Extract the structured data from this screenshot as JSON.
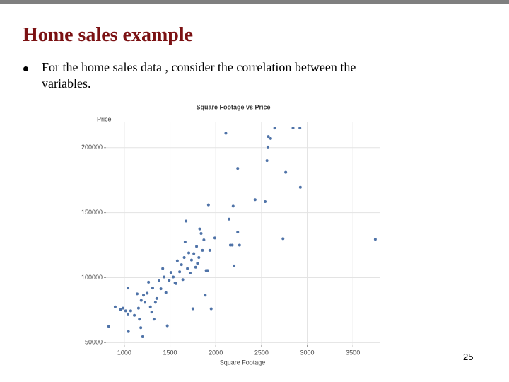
{
  "title": "Home sales example",
  "bullets": [
    "For the home sales data , consider the correlation between the variables."
  ],
  "page_number": "25",
  "chart_data": {
    "type": "scatter",
    "title": "Square Footage vs Price",
    "x_label": "Square Footage",
    "y_label": "Price",
    "color": "#4f73a8",
    "grid": true,
    "xlim": [
      800,
      3800
    ],
    "xticks": [
      1000,
      1500,
      2000,
      2500,
      3000,
      3500
    ],
    "ylim": [
      48000,
      220000
    ],
    "yticks": [
      50000,
      100000,
      150000,
      200000
    ],
    "x": [
      830,
      900,
      960,
      985,
      1015,
      1040,
      1045,
      1040,
      1070,
      1110,
      1140,
      1155,
      1165,
      1180,
      1200,
      1185,
      1210,
      1225,
      1250,
      1265,
      1285,
      1300,
      1310,
      1325,
      1340,
      1355,
      1380,
      1400,
      1420,
      1435,
      1455,
      1470,
      1490,
      1510,
      1535,
      1555,
      1565,
      1580,
      1605,
      1625,
      1640,
      1655,
      1665,
      1675,
      1690,
      1705,
      1720,
      1735,
      1750,
      1760,
      1780,
      1790,
      1800,
      1815,
      1825,
      1840,
      1855,
      1870,
      1885,
      1895,
      1910,
      1920,
      1935,
      1950,
      1990,
      2110,
      2145,
      2160,
      2180,
      2190,
      2200,
      2240,
      2240,
      2260,
      2430,
      2540,
      2560,
      2570,
      2575,
      2600,
      2645,
      2735,
      2765,
      2845,
      2920,
      2925,
      3745
    ],
    "values": [
      62500,
      77500,
      75500,
      76500,
      74500,
      72000,
      58500,
      92000,
      74500,
      71000,
      87500,
      76500,
      68000,
      61500,
      54500,
      82500,
      86500,
      81000,
      88000,
      96500,
      77500,
      73500,
      92000,
      68000,
      81000,
      84000,
      97500,
      91500,
      107000,
      100500,
      88500,
      63000,
      98000,
      104000,
      100500,
      96000,
      95500,
      113000,
      104500,
      110000,
      98500,
      115500,
      127500,
      143500,
      107000,
      119000,
      103500,
      113500,
      76000,
      118500,
      108000,
      124000,
      111000,
      115500,
      137500,
      134000,
      121000,
      129000,
      86500,
      105500,
      105500,
      156000,
      121000,
      76000,
      130500,
      211000,
      145000,
      125000,
      125000,
      155000,
      109000,
      184000,
      135000,
      125000,
      160000,
      158500,
      190000,
      200500,
      208500,
      207000,
      215000,
      130000,
      181000,
      215000,
      215000,
      169500,
      129500
    ]
  }
}
